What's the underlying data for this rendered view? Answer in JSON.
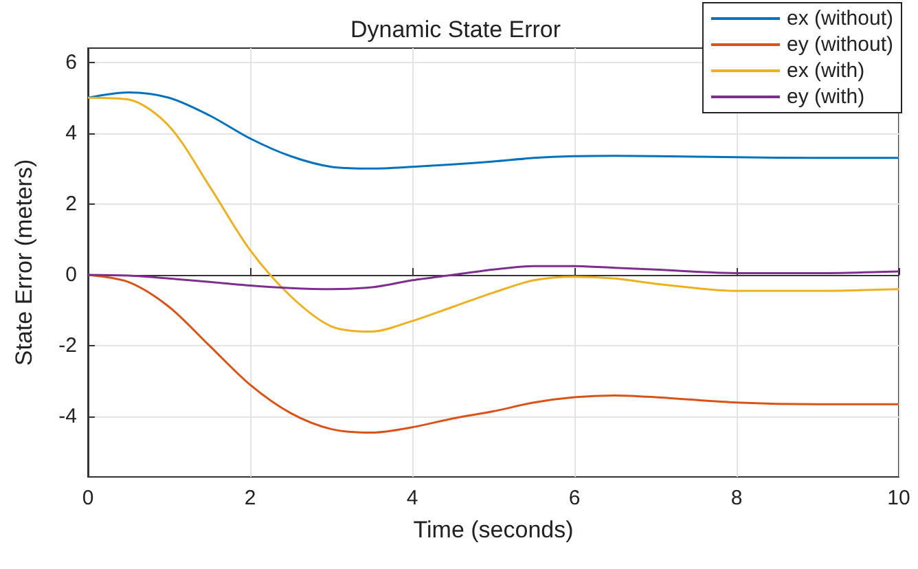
{
  "chart_data": {
    "type": "line",
    "title": "Dynamic State Error",
    "xlabel": "Time (seconds)",
    "ylabel": "State Error (meters)",
    "x": [
      0,
      0.5,
      1,
      1.5,
      2,
      2.5,
      3,
      3.5,
      4,
      4.5,
      5,
      5.5,
      6,
      6.5,
      7,
      8,
      9,
      10
    ],
    "series": [
      {
        "name": "ex (without)",
        "color": "#0072bd",
        "values": [
          5,
          5.15,
          5.0,
          4.5,
          3.85,
          3.35,
          3.05,
          3.0,
          3.05,
          3.12,
          3.2,
          3.3,
          3.35,
          3.36,
          3.35,
          3.32,
          3.3,
          3.3
        ]
      },
      {
        "name": "ey (without)",
        "color": "#d95319",
        "values": [
          0,
          -0.2,
          -0.9,
          -2.0,
          -3.1,
          -3.9,
          -4.35,
          -4.45,
          -4.3,
          -4.05,
          -3.85,
          -3.6,
          -3.45,
          -3.4,
          -3.45,
          -3.6,
          -3.65,
          -3.65
        ]
      },
      {
        "name": "ex (with)",
        "color": "#edb120",
        "values": [
          5,
          4.95,
          4.2,
          2.5,
          0.7,
          -0.6,
          -1.45,
          -1.6,
          -1.3,
          -0.9,
          -0.5,
          -0.15,
          -0.05,
          -0.1,
          -0.25,
          -0.45,
          -0.45,
          -0.4
        ]
      },
      {
        "name": "ey (with)",
        "color": "#7e2f8e",
        "values": [
          0,
          -0.02,
          -0.1,
          -0.2,
          -0.3,
          -0.37,
          -0.4,
          -0.35,
          -0.15,
          0,
          0.15,
          0.25,
          0.25,
          0.2,
          0.15,
          0.05,
          0.05,
          0.1
        ]
      }
    ],
    "xlim": [
      0,
      10
    ],
    "xticks": [
      0,
      2,
      4,
      6,
      8,
      10
    ],
    "ylim": [
      -5.7,
      6.4
    ],
    "yticks": [
      -4,
      -2,
      0,
      2,
      4,
      6
    ],
    "grid": true,
    "legend": "top right",
    "marker": "none",
    "line_style": "solid"
  }
}
